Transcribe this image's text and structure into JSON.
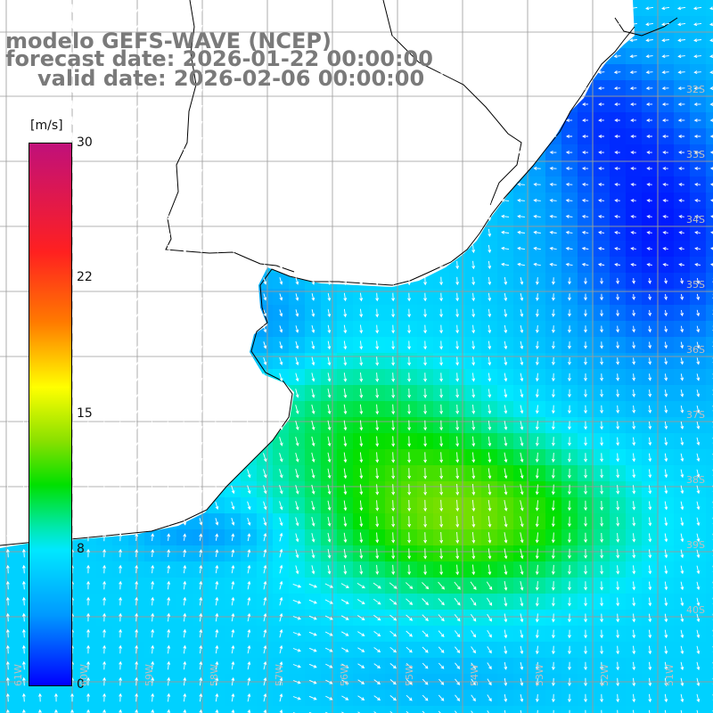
{
  "title": {
    "line1": "modelo GEFS-WAVE (NCEP)",
    "line2": "forecast date: 2026-01-22 00:00:00",
    "line3": "valid date: 2026-02-06 00:00:00"
  },
  "colorbar": {
    "unit": "[m/s]",
    "ticks": [
      "30",
      "22",
      "15",
      "8",
      "0"
    ],
    "min": 0,
    "max": 30
  },
  "lat_labels": [
    "32S",
    "33S",
    "34S",
    "35S",
    "36S",
    "37S",
    "38S",
    "39S",
    "40S"
  ],
  "lon_labels": [
    "61W",
    "60W",
    "59W",
    "58W",
    "57W",
    "56W",
    "55W",
    "54W",
    "53W",
    "52W",
    "51W"
  ],
  "field": {
    "description_of_max": "wind speed maximum near 39S 55W",
    "max_speed": 14,
    "min_speed": 1
  },
  "colors": {
    "grid": "#9a9a9a",
    "coast": "#000000",
    "land": "#ffffff",
    "arrow": "#ffffff",
    "title": "#7a7a7a"
  }
}
